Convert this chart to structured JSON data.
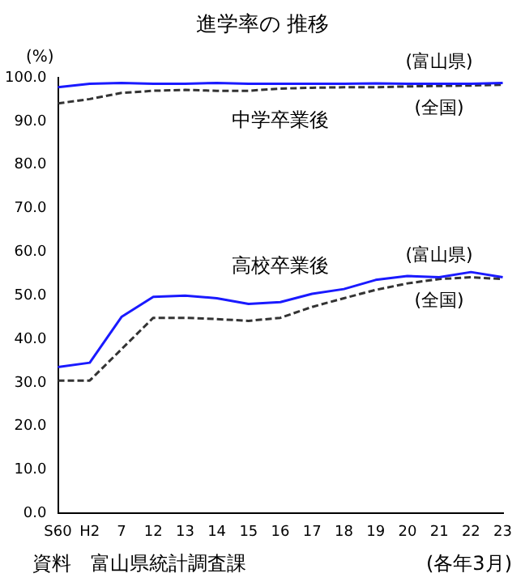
{
  "chart_data": {
    "type": "line",
    "title": "進学率の 推移",
    "ylabel": "(%)",
    "categories": [
      "S60",
      "H2",
      "7",
      "12",
      "13",
      "14",
      "15",
      "16",
      "17",
      "18",
      "19",
      "20",
      "21",
      "22",
      "23"
    ],
    "series": [
      {
        "name": "(富山県)",
        "color": "#1a1aff",
        "line_style": "solid",
        "values": [
          97.8,
          98.6,
          98.8,
          98.6,
          98.6,
          98.8,
          98.6,
          98.6,
          98.6,
          98.6,
          98.7,
          98.6,
          98.6,
          98.6,
          98.8
        ]
      },
      {
        "name": "(全国)",
        "color": "#333333",
        "line_style": "dashed",
        "values": [
          94.1,
          95.1,
          96.5,
          97.0,
          97.2,
          97.0,
          97.0,
          97.5,
          97.7,
          97.8,
          97.8,
          98.0,
          98.1,
          98.2,
          98.4
        ]
      },
      {
        "name": "(富山県)",
        "color": "#1a1aff",
        "line_style": "solid",
        "values": [
          33.6,
          34.6,
          45.1,
          49.7,
          50.0,
          49.4,
          48.1,
          48.5,
          50.4,
          51.5,
          53.6,
          54.5,
          54.2,
          55.4,
          54.2
        ]
      },
      {
        "name": "(全国)",
        "color": "#333333",
        "line_style": "dashed",
        "values": [
          30.5,
          30.5,
          37.7,
          44.9,
          44.9,
          44.6,
          44.2,
          44.9,
          47.4,
          49.4,
          51.3,
          52.8,
          53.8,
          54.2,
          53.8
        ]
      }
    ],
    "ylim": [
      0,
      100
    ],
    "yticks": [
      {
        "value": 0,
        "label": "0.0"
      },
      {
        "value": 10,
        "label": "10.0"
      },
      {
        "value": 20,
        "label": "20.0"
      },
      {
        "value": 30,
        "label": "30.0"
      },
      {
        "value": 40,
        "label": "40.0"
      },
      {
        "value": 50,
        "label": "50.0"
      },
      {
        "value": 60,
        "label": "60.0"
      },
      {
        "value": 70,
        "label": "70.0"
      },
      {
        "value": 80,
        "label": "80.0"
      },
      {
        "value": 90,
        "label": "90.0"
      },
      {
        "value": 100,
        "label": "100.0"
      }
    ],
    "grid": false,
    "legend": false,
    "marker": "none",
    "annotations": [
      "中学卒業後",
      "高校卒業後",
      "資料　富山県統計調査課",
      "(各年3月)"
    ]
  }
}
